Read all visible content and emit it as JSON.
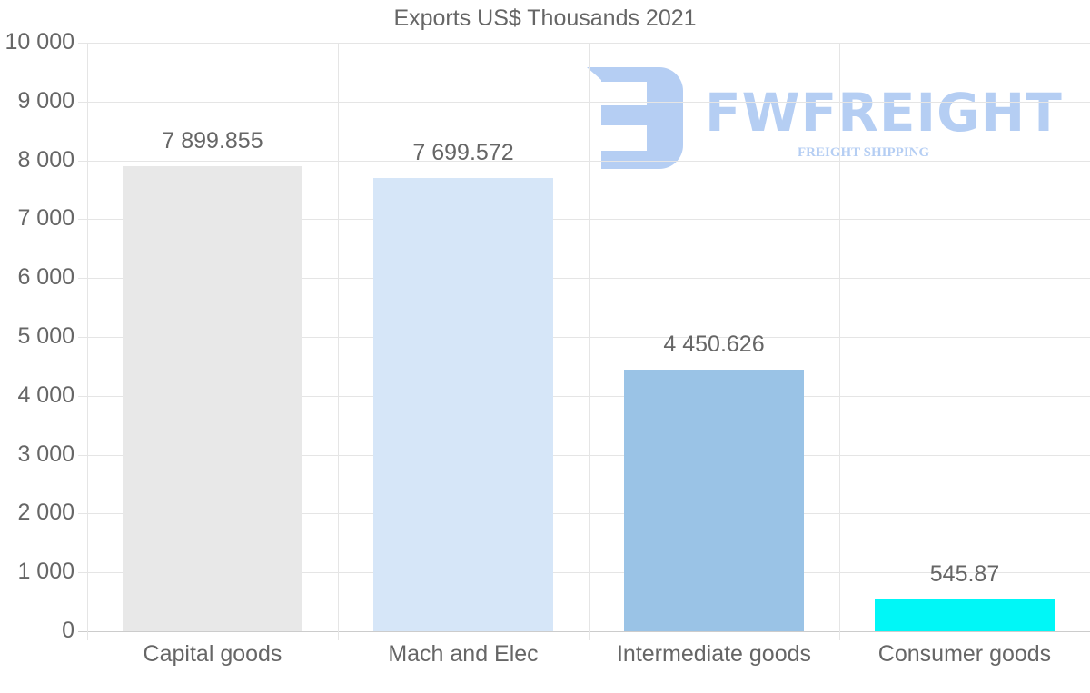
{
  "chart_data": {
    "type": "bar",
    "title": "Exports US$ Thousands 2021",
    "xlabel": "",
    "ylabel": "",
    "ylim": [
      0,
      10000
    ],
    "grid": true,
    "legend": null,
    "categories": [
      "Capital goods",
      "Mach and Elec",
      "Intermediate goods",
      "Consumer goods"
    ],
    "values": [
      7899.855,
      7699.572,
      4450.626,
      545.87
    ],
    "data_labels": [
      "7 899.855",
      "7 699.572",
      "4 450.626",
      "545.87"
    ],
    "colors": [
      "#e8e8e8",
      "#d6e6f8",
      "#9ac3e6",
      "#00f7f7"
    ],
    "yticks": [
      {
        "value": 0,
        "label": "0"
      },
      {
        "value": 1000,
        "label": "1 000"
      },
      {
        "value": 2000,
        "label": "2 000"
      },
      {
        "value": 3000,
        "label": "3 000"
      },
      {
        "value": 4000,
        "label": "4 000"
      },
      {
        "value": 5000,
        "label": "5 000"
      },
      {
        "value": 6000,
        "label": "6 000"
      },
      {
        "value": 7000,
        "label": "7 000"
      },
      {
        "value": 8000,
        "label": "8 000"
      },
      {
        "value": 9000,
        "label": "9 000"
      },
      {
        "value": 10000,
        "label": "10 000"
      }
    ]
  },
  "watermark": {
    "brand": "FWFREIGHT",
    "tagline": "FREIGHT SHIPPING",
    "color": "#a9c6f2"
  }
}
